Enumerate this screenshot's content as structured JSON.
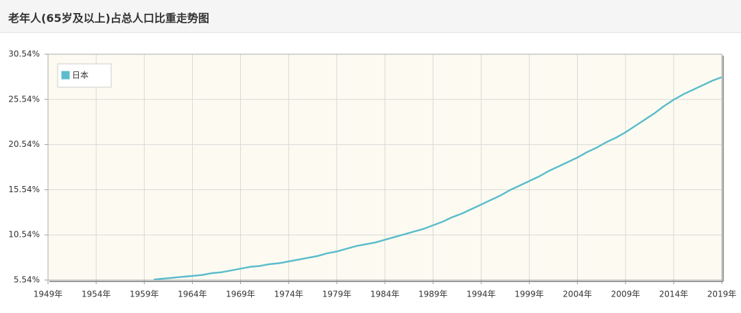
{
  "chart_data": {
    "type": "line",
    "title": "老年人(65岁及以上)占总人口比重走势图",
    "x": [
      1960,
      1961,
      1962,
      1963,
      1964,
      1965,
      1966,
      1967,
      1968,
      1969,
      1970,
      1971,
      1972,
      1973,
      1974,
      1975,
      1976,
      1977,
      1978,
      1979,
      1980,
      1981,
      1982,
      1983,
      1984,
      1985,
      1986,
      1987,
      1988,
      1989,
      1990,
      1991,
      1992,
      1993,
      1994,
      1995,
      1996,
      1997,
      1998,
      1999,
      2000,
      2001,
      2002,
      2003,
      2004,
      2005,
      2006,
      2007,
      2008,
      2009,
      2010,
      2011,
      2012,
      2013,
      2014,
      2015,
      2016,
      2017,
      2018,
      2019
    ],
    "series": [
      {
        "name": "日本",
        "color": "#5bbccc",
        "values": [
          5.6,
          5.7,
          5.8,
          5.9,
          6.0,
          6.1,
          6.3,
          6.4,
          6.6,
          6.8,
          7.0,
          7.1,
          7.3,
          7.4,
          7.6,
          7.8,
          8.0,
          8.2,
          8.5,
          8.7,
          9.0,
          9.3,
          9.5,
          9.7,
          10.0,
          10.3,
          10.6,
          10.9,
          11.2,
          11.6,
          12.0,
          12.5,
          12.9,
          13.4,
          13.9,
          14.4,
          14.9,
          15.5,
          16.0,
          16.5,
          17.0,
          17.6,
          18.1,
          18.6,
          19.1,
          19.7,
          20.2,
          20.8,
          21.3,
          21.9,
          22.6,
          23.3,
          24.0,
          24.8,
          25.5,
          26.1,
          26.6,
          27.1,
          27.6,
          28.0
        ]
      }
    ],
    "xlim": [
      1949,
      2019
    ],
    "xticks": [
      {
        "value": 1949,
        "label": "1949年"
      },
      {
        "value": 1954,
        "label": "1954年"
      },
      {
        "value": 1959,
        "label": "1959年"
      },
      {
        "value": 1964,
        "label": "1964年"
      },
      {
        "value": 1969,
        "label": "1969年"
      },
      {
        "value": 1974,
        "label": "1974年"
      },
      {
        "value": 1979,
        "label": "1979年"
      },
      {
        "value": 1984,
        "label": "1984年"
      },
      {
        "value": 1989,
        "label": "1989年"
      },
      {
        "value": 1994,
        "label": "1994年"
      },
      {
        "value": 1999,
        "label": "1999年"
      },
      {
        "value": 2004,
        "label": "2004年"
      },
      {
        "value": 2009,
        "label": "2009年"
      },
      {
        "value": 2014,
        "label": "2014年"
      },
      {
        "value": 2019,
        "label": "2019年"
      }
    ],
    "ylim": [
      5.54,
      30.54
    ],
    "yticks": [
      {
        "value": 5.54,
        "label": "5.54%"
      },
      {
        "value": 10.54,
        "label": "10.54%"
      },
      {
        "value": 15.54,
        "label": "15.54%"
      },
      {
        "value": 20.54,
        "label": "20.54%"
      },
      {
        "value": 25.54,
        "label": "25.54%"
      },
      {
        "value": 30.54,
        "label": "30.54%"
      }
    ],
    "grid": true,
    "legend": "upper left"
  }
}
